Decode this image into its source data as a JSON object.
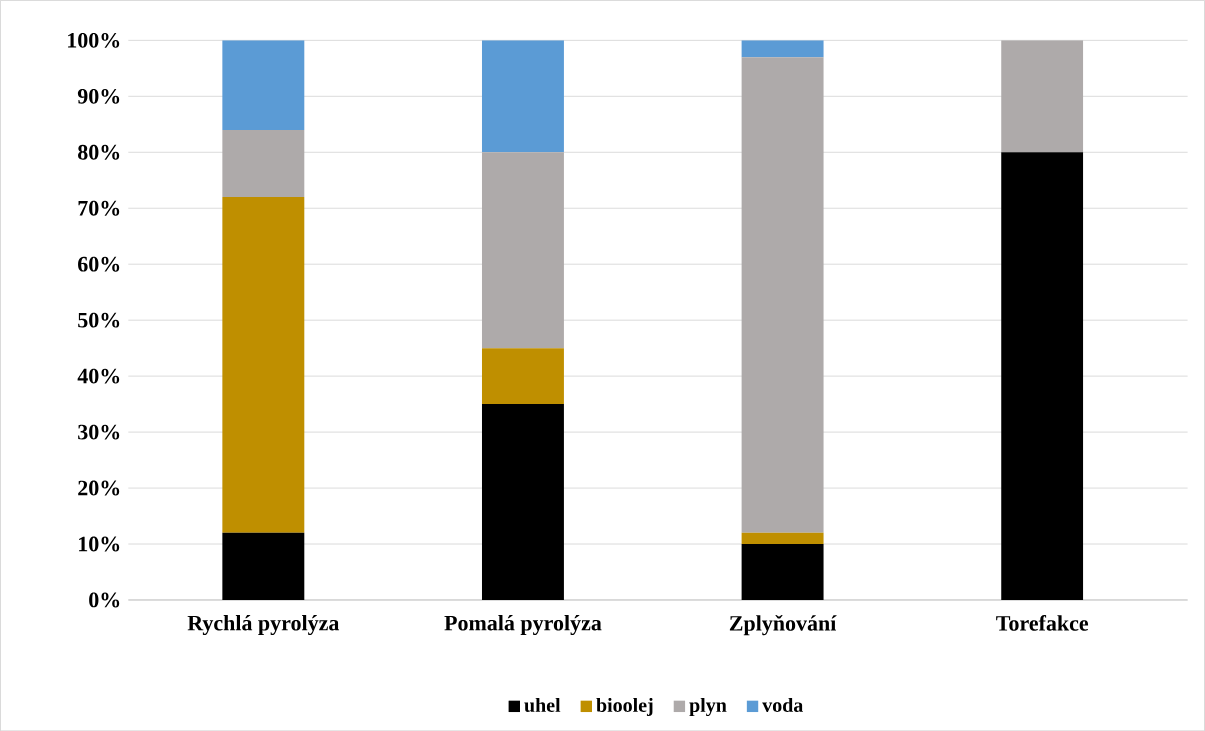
{
  "chart_data": {
    "type": "bar",
    "stacked": true,
    "categories": [
      "Rychlá pyrolýza",
      "Pomalá pyrolýza",
      "Zplyňování",
      "Torefakce"
    ],
    "series": [
      {
        "name": "uhel",
        "color": "#000000",
        "values": [
          12,
          35,
          10,
          80
        ]
      },
      {
        "name": "bioolej",
        "color": "#bf8f00",
        "values": [
          60,
          10,
          2,
          0
        ]
      },
      {
        "name": "plyn",
        "color": "#aeaaaa",
        "values": [
          12,
          35,
          85,
          20
        ]
      },
      {
        "name": "voda",
        "color": "#5b9bd5",
        "values": [
          16,
          20,
          3,
          0
        ]
      }
    ],
    "ylim": [
      0,
      100
    ],
    "yticks": [
      {
        "value": 0,
        "label": "0%"
      },
      {
        "value": 10,
        "label": "10%"
      },
      {
        "value": 20,
        "label": "20%"
      },
      {
        "value": 30,
        "label": "30%"
      },
      {
        "value": 40,
        "label": "40%"
      },
      {
        "value": 50,
        "label": "50%"
      },
      {
        "value": 60,
        "label": "60%"
      },
      {
        "value": 70,
        "label": "70%"
      },
      {
        "value": 80,
        "label": "80%"
      },
      {
        "value": 90,
        "label": "90%"
      },
      {
        "value": 100,
        "label": "100%"
      }
    ],
    "grid": "y",
    "legend": "bottom"
  }
}
